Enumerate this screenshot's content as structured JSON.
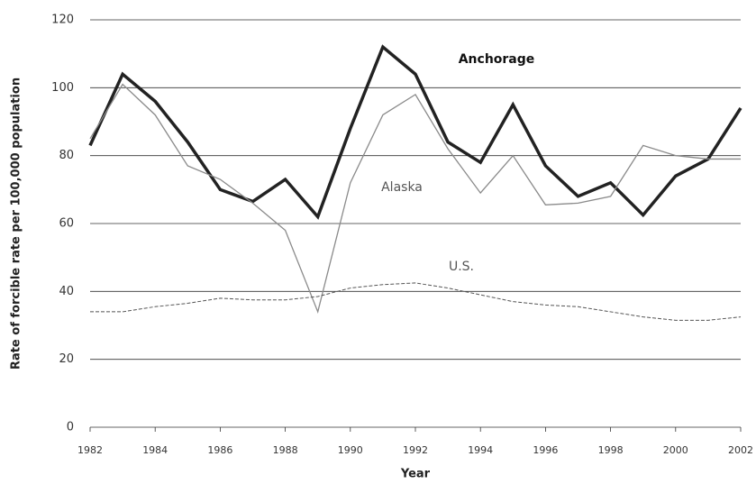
{
  "chart_data": {
    "type": "line",
    "x": [
      1982,
      1983,
      1984,
      1985,
      1986,
      1987,
      1988,
      1989,
      1990,
      1991,
      1992,
      1993,
      1994,
      1995,
      1996,
      1997,
      1998,
      1999,
      2000,
      2001,
      2002
    ],
    "series": [
      {
        "name": "Anchorage",
        "color": "#222222",
        "width": 3.5,
        "dashed": false,
        "values": [
          83,
          104,
          96,
          84,
          70,
          66.5,
          73,
          62,
          88,
          112,
          104,
          84,
          78,
          95,
          77,
          68,
          72,
          62.5,
          74,
          79,
          94
        ]
      },
      {
        "name": "Alaska",
        "color": "#8a8a8a",
        "width": 1.3,
        "dashed": false,
        "values": [
          85,
          101,
          92,
          77,
          73,
          66,
          58,
          34,
          72,
          92,
          98,
          82,
          69,
          80,
          65.5,
          66,
          68,
          83,
          80,
          79,
          79
        ]
      },
      {
        "name": "U.S.",
        "color": "#555555",
        "width": 1,
        "dashed": true,
        "values": [
          34,
          34,
          35.5,
          36.5,
          38,
          37.5,
          37.5,
          38.5,
          41,
          42,
          42.5,
          41,
          39,
          37,
          36,
          35.5,
          34,
          32.5,
          31.5,
          31.5,
          32.5
        ]
      }
    ],
    "xlim": [
      1982,
      2002
    ],
    "xticks": [
      1982,
      1984,
      1986,
      1988,
      1990,
      1992,
      1994,
      1996,
      1998,
      2000,
      2002
    ],
    "ylim": [
      0,
      120
    ],
    "yticks": [
      0,
      20,
      40,
      60,
      80,
      100,
      120
    ],
    "xlabel": "Year",
    "ylabel": "Rate of forcible rate per 100,000 population",
    "grid": true
  }
}
